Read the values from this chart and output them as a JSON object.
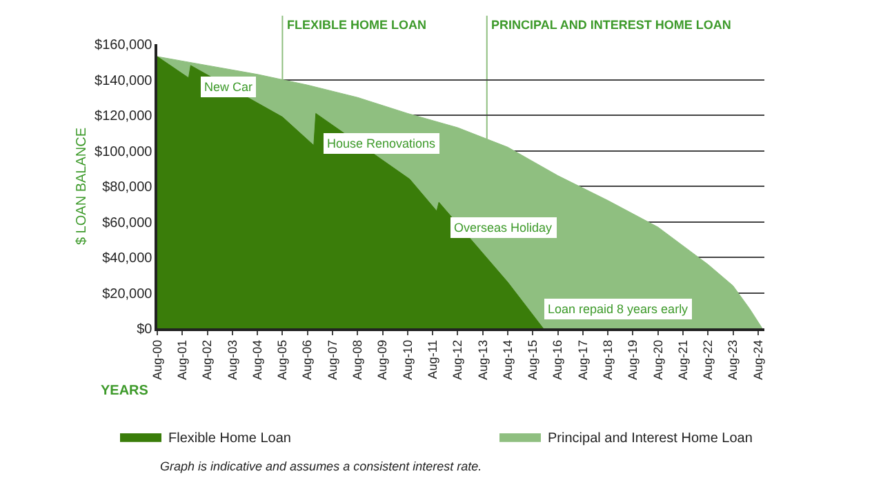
{
  "chart_data": {
    "type": "area",
    "ylabel": "$ LOAN BALANCE",
    "xlabel": "YEARS",
    "series": [
      {
        "name": "Principal and Interest Home Loan",
        "color": "#8fbf80",
        "x": [
          "2000-08",
          "2002-08",
          "2004-08",
          "2006-08",
          "2008-08",
          "2010-08",
          "2012-08",
          "2014-08",
          "2016-08",
          "2018-08",
          "2020-08",
          "2022-08",
          "2023-08",
          "2024-04",
          "2024-10"
        ],
        "values": [
          153000,
          148000,
          143000,
          137000,
          130000,
          121000,
          113000,
          102000,
          86000,
          72000,
          57000,
          36000,
          24000,
          11000,
          0
        ]
      },
      {
        "name": "Flexible Home Loan",
        "color": "#3a7d0a",
        "x": [
          "2000-08",
          "2001-11",
          "2001-12",
          "2005-08",
          "2006-11",
          "2006-12",
          "2010-09",
          "2011-10",
          "2011-11",
          "2014-08",
          "2016-01"
        ],
        "values": [
          153000,
          141000,
          148000,
          119000,
          103000,
          121000,
          84000,
          66000,
          71000,
          26000,
          0
        ]
      }
    ],
    "xlim": [
      "2000-08",
      "2024-11"
    ],
    "xticks": [
      {
        "value": "2000-08",
        "label": "Aug-00"
      },
      {
        "value": "2001-08",
        "label": "Aug-01"
      },
      {
        "value": "2002-08",
        "label": "Aug-02"
      },
      {
        "value": "2003-08",
        "label": "Aug-03"
      },
      {
        "value": "2004-08",
        "label": "Aug-04"
      },
      {
        "value": "2005-08",
        "label": "Aug-05"
      },
      {
        "value": "2006-08",
        "label": "Aug-06"
      },
      {
        "value": "2007-08",
        "label": "Aug-07"
      },
      {
        "value": "2008-08",
        "label": "Aug-08"
      },
      {
        "value": "2009-08",
        "label": "Aug-09"
      },
      {
        "value": "2010-08",
        "label": "Aug-10"
      },
      {
        "value": "2011-08",
        "label": "Aug-11"
      },
      {
        "value": "2012-08",
        "label": "Aug-12"
      },
      {
        "value": "2013-08",
        "label": "Aug-13"
      },
      {
        "value": "2014-08",
        "label": "Aug-14"
      },
      {
        "value": "2015-08",
        "label": "Aug-15"
      },
      {
        "value": "2016-08",
        "label": "Aug-16"
      },
      {
        "value": "2017-08",
        "label": "Aug-17"
      },
      {
        "value": "2018-08",
        "label": "Aug-18"
      },
      {
        "value": "2019-08",
        "label": "Aug-19"
      },
      {
        "value": "2020-08",
        "label": "Aug-20"
      },
      {
        "value": "2021-08",
        "label": "Aug-21"
      },
      {
        "value": "2022-08",
        "label": "Aug-22"
      },
      {
        "value": "2023-08",
        "label": "Aug-23"
      },
      {
        "value": "2024-08",
        "label": "Aug-24"
      }
    ],
    "ylim": [
      0,
      160000
    ],
    "yticks": [
      {
        "value": 0,
        "label": "$0"
      },
      {
        "value": 20000,
        "label": "$20,000"
      },
      {
        "value": 40000,
        "label": "$40,000"
      },
      {
        "value": 60000,
        "label": "$60,000"
      },
      {
        "value": 80000,
        "label": "$80,000"
      },
      {
        "value": 100000,
        "label": "$100,000"
      },
      {
        "value": 120000,
        "label": "$120,000"
      },
      {
        "value": 140000,
        "label": "$140,000"
      },
      {
        "value": 160000,
        "label": "$160,000"
      }
    ],
    "grid": "y",
    "legend": "bottom",
    "ref_lines": [
      {
        "axis": "x",
        "value": "2005-08",
        "label": "FLEXIBLE HOME LOAN",
        "color": "#8fbf80"
      },
      {
        "axis": "x",
        "value": "2013-10",
        "label": "PRINCIPAL AND INTEREST HOME LOAN",
        "color": "#8fbf80"
      }
    ],
    "annotations": [
      "New Car",
      "House Renovations",
      "Overseas Holiday",
      "Loan repaid 8 years early",
      "Graph is indicative and assumes a consistent interest rate."
    ]
  }
}
